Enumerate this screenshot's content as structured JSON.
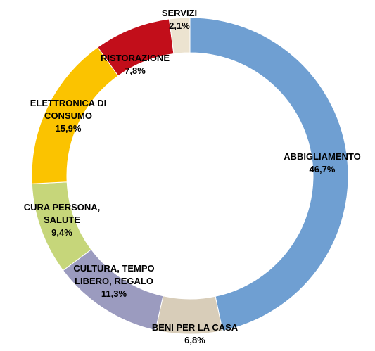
{
  "chart_data": {
    "type": "donut",
    "categories": [
      "ABBIGLIAMENTO",
      "BENI PER LA CASA",
      "CULTURA, TEMPO\nLIBERO, REGALO",
      "CURA PERSONA,\nSALUTE",
      "ELETTRONICA DI\nCONSUMO",
      "RISTORAZIONE",
      "SERVIZI"
    ],
    "values": [
      46.7,
      6.8,
      11.3,
      9.4,
      15.9,
      7.8,
      2.1
    ],
    "value_labels": [
      "46,7%",
      "6,8%",
      "11,3%",
      "9,4%",
      "15,9%",
      "7,8%",
      "2,1%"
    ],
    "colors": [
      "#6f9fd2",
      "#d8cdb9",
      "#9b9bbf",
      "#c6d67a",
      "#fbc300",
      "#c20e1a",
      "#ece3d0"
    ]
  }
}
